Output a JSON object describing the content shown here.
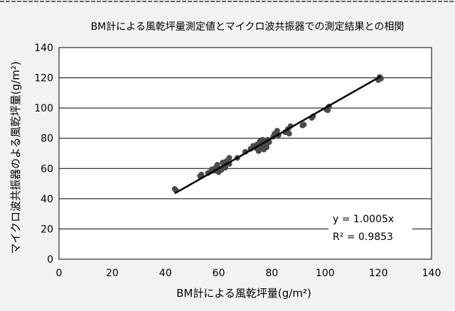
{
  "chart_data": {
    "type": "scatter",
    "title": "BM計による風乾坪量測定値とマイクロ波共振器での測定結果との相関",
    "xlabel": "BM計による風乾坪量(g/m²)",
    "ylabel": "マイクロ波共振器のよる風乾坪量(g/m²)",
    "xlim": [
      0,
      140
    ],
    "ylim": [
      0,
      140
    ],
    "xticks": [
      "0",
      "20",
      "40",
      "60",
      "80",
      "100",
      "120",
      "140"
    ],
    "yticks": [
      "0",
      "20",
      "40",
      "60",
      "80",
      "100",
      "120",
      "140"
    ],
    "grid": {
      "horizontal": true,
      "vertical": false
    },
    "legend": "none",
    "marker_color": "#4a4a4a",
    "line_color": "#000000",
    "trendline": {
      "slope": 1.0005,
      "intercept": 0,
      "x_range": [
        43.5,
        121
      ]
    },
    "annotations": {
      "equation": "y = 1.0005x",
      "r_squared": "R² = 0.9853"
    },
    "points": [
      {
        "x": 43.5,
        "y": 46.5
      },
      {
        "x": 44,
        "y": 45.5
      },
      {
        "x": 53,
        "y": 55
      },
      {
        "x": 53.5,
        "y": 56
      },
      {
        "x": 56,
        "y": 57
      },
      {
        "x": 57,
        "y": 58
      },
      {
        "x": 57.5,
        "y": 59.5
      },
      {
        "x": 58.5,
        "y": 58.5
      },
      {
        "x": 59,
        "y": 61
      },
      {
        "x": 59.5,
        "y": 62.5
      },
      {
        "x": 60,
        "y": 57.5
      },
      {
        "x": 60.5,
        "y": 60
      },
      {
        "x": 61,
        "y": 59
      },
      {
        "x": 61.5,
        "y": 64
      },
      {
        "x": 62,
        "y": 61.5
      },
      {
        "x": 62.5,
        "y": 60.5
      },
      {
        "x": 63,
        "y": 65
      },
      {
        "x": 64,
        "y": 63
      },
      {
        "x": 64,
        "y": 67
      },
      {
        "x": 67,
        "y": 67
      },
      {
        "x": 70,
        "y": 71
      },
      {
        "x": 72,
        "y": 73
      },
      {
        "x": 73,
        "y": 75
      },
      {
        "x": 74,
        "y": 73.5
      },
      {
        "x": 74.5,
        "y": 76
      },
      {
        "x": 75,
        "y": 71.5
      },
      {
        "x": 75,
        "y": 74.5
      },
      {
        "x": 75.5,
        "y": 78
      },
      {
        "x": 76,
        "y": 73
      },
      {
        "x": 76,
        "y": 76.5
      },
      {
        "x": 76.5,
        "y": 79
      },
      {
        "x": 77,
        "y": 72.5
      },
      {
        "x": 77,
        "y": 75.5
      },
      {
        "x": 77.5,
        "y": 77
      },
      {
        "x": 78,
        "y": 74
      },
      {
        "x": 78,
        "y": 76
      },
      {
        "x": 78.5,
        "y": 79
      },
      {
        "x": 79,
        "y": 77.5
      },
      {
        "x": 80.5,
        "y": 81
      },
      {
        "x": 81,
        "y": 83
      },
      {
        "x": 82,
        "y": 85
      },
      {
        "x": 82.5,
        "y": 82
      },
      {
        "x": 85,
        "y": 84
      },
      {
        "x": 86,
        "y": 86
      },
      {
        "x": 86.5,
        "y": 83
      },
      {
        "x": 87,
        "y": 88
      },
      {
        "x": 91.5,
        "y": 88.5
      },
      {
        "x": 92,
        "y": 89
      },
      {
        "x": 95,
        "y": 93.5
      },
      {
        "x": 95.5,
        "y": 94.5
      },
      {
        "x": 100.5,
        "y": 99
      },
      {
        "x": 101,
        "y": 100
      },
      {
        "x": 101.5,
        "y": 101
      },
      {
        "x": 101,
        "y": 98.5
      },
      {
        "x": 120,
        "y": 118.5
      },
      {
        "x": 120.5,
        "y": 120.5
      },
      {
        "x": 121,
        "y": 119.5
      }
    ]
  }
}
